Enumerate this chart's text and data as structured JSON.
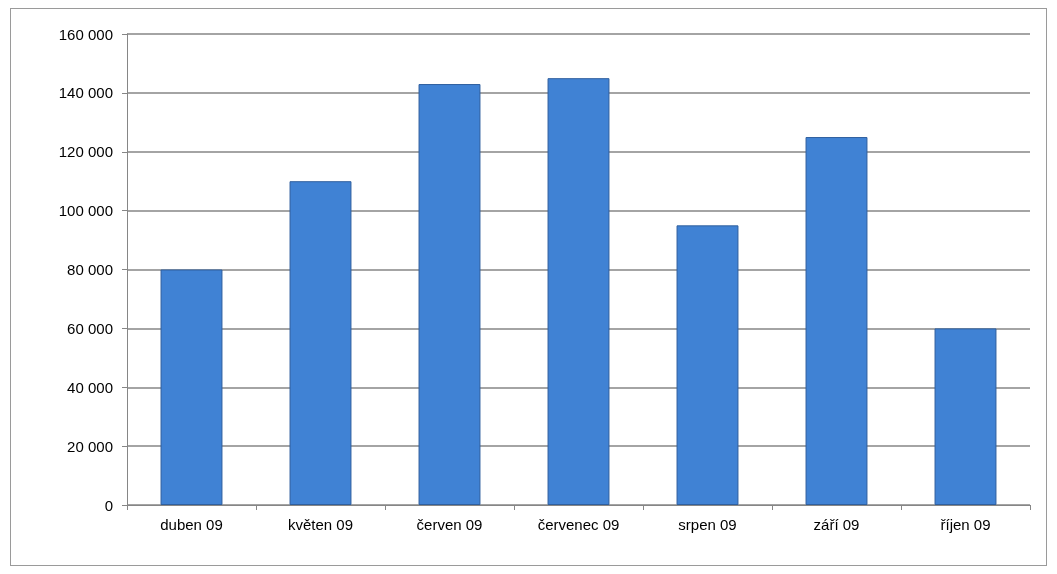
{
  "chart_data": {
    "type": "bar",
    "categories": [
      "duben 09",
      "květen 09",
      "červen 09",
      "červenec 09",
      "srpen 09",
      "září 09",
      "říjen 09"
    ],
    "values": [
      80000,
      110000,
      143000,
      145000,
      95000,
      125000,
      60000
    ],
    "color": "#4082d4",
    "ylim": [
      0,
      160000
    ],
    "yticks": [
      0,
      20000,
      40000,
      60000,
      80000,
      100000,
      120000,
      140000,
      160000
    ],
    "grid": "y"
  }
}
